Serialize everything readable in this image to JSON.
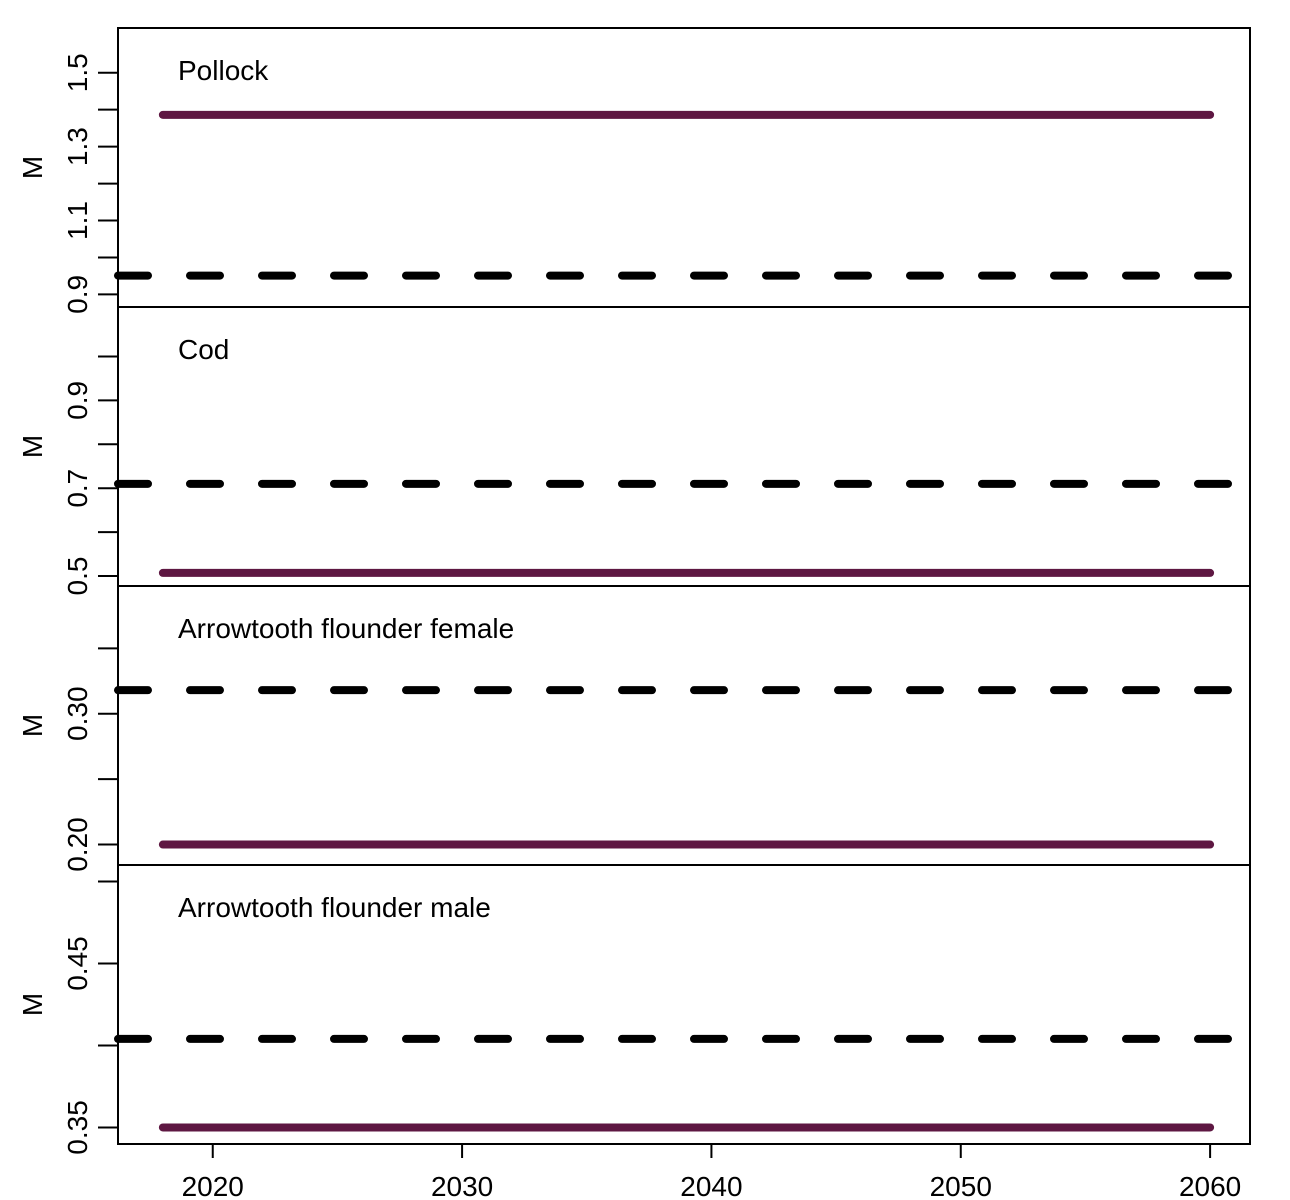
{
  "chart_data": {
    "type": "line",
    "x": [
      2018,
      2060
    ],
    "xlim": [
      2016.2,
      2061.6
    ],
    "x_ticks": [
      2020,
      2030,
      2040,
      2050,
      2060
    ],
    "grid": false,
    "panels": [
      {
        "title": "Pollock",
        "ylabel": "M",
        "ylim": [
          0.893,
          1.594
        ],
        "y_ticks_labeled": [
          0.9,
          1.1,
          1.3,
          1.5
        ],
        "y_ticks_minor": [
          1.0,
          1.2,
          1.4
        ],
        "series": [
          {
            "style": "solid",
            "color": "#5e1742",
            "x": [
              2018,
              2060
            ],
            "values": [
              1.386,
              1.386
            ]
          },
          {
            "style": "dashed",
            "color": "#000000",
            "x": [
              2016.2,
              2061.6
            ],
            "values": [
              0.951,
              0.951
            ]
          }
        ]
      },
      {
        "title": "Cod",
        "ylabel": "M",
        "ylim": [
          0.5,
          1.09
        ],
        "y_ticks_labeled": [
          0.5,
          0.7,
          0.9
        ],
        "y_ticks_minor": [
          0.6,
          0.8,
          1.0
        ],
        "series": [
          {
            "style": "solid",
            "color": "#5e1742",
            "x": [
              2018,
              2060
            ],
            "values": [
              0.507,
              0.507
            ]
          },
          {
            "style": "dashed",
            "color": "#000000",
            "x": [
              2016.2,
              2061.6
            ],
            "values": [
              0.71,
              0.71
            ]
          }
        ]
      },
      {
        "title": "Arrowtooth flounder female",
        "ylabel": "M",
        "ylim": [
          0.192,
          0.39
        ],
        "y_ticks_labeled": [
          0.2,
          0.3
        ],
        "y_ticks_minor": [
          0.25,
          0.35
        ],
        "series": [
          {
            "style": "solid",
            "color": "#5e1742",
            "x": [
              2018,
              2060
            ],
            "values": [
              0.2,
              0.2
            ]
          },
          {
            "style": "dashed",
            "color": "#000000",
            "x": [
              2016.2,
              2061.6
            ],
            "values": [
              0.318,
              0.318
            ]
          }
        ]
      },
      {
        "title": "Arrowtooth flounder male",
        "ylabel": "M",
        "ylim": [
          0.346,
          0.504
        ],
        "y_ticks_labeled": [
          0.35,
          0.45
        ],
        "y_ticks_minor": [
          0.4,
          0.5
        ],
        "series": [
          {
            "style": "solid",
            "color": "#5e1742",
            "x": [
              2018,
              2060
            ],
            "values": [
              0.35,
              0.35
            ]
          },
          {
            "style": "dashed",
            "color": "#000000",
            "x": [
              2016.2,
              2061.6
            ],
            "values": [
              0.404,
              0.404
            ]
          }
        ]
      }
    ]
  }
}
